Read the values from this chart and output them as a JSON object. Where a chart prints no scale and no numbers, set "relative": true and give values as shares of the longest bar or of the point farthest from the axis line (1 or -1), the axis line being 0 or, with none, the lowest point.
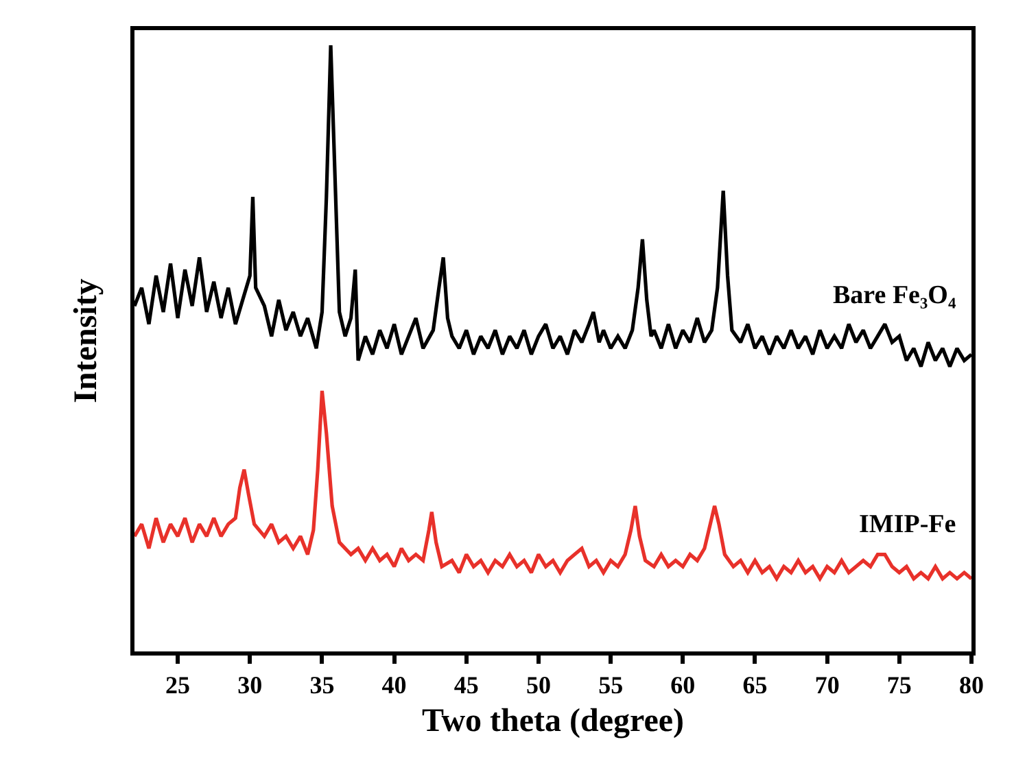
{
  "chart_data": {
    "type": "line",
    "relative": true,
    "xlabel": "Two theta (degree)",
    "ylabel": "Intensity",
    "xlim": [
      22,
      80
    ],
    "xticks": [
      25,
      30,
      35,
      40,
      45,
      50,
      55,
      60,
      65,
      70,
      75,
      80
    ],
    "legend": false,
    "marker": "none",
    "line_style": "solid",
    "series": [
      {
        "name": "Bare Fe₃O₄",
        "color": "#000000",
        "x": [
          22,
          22.5,
          23,
          23.5,
          24,
          24.5,
          25,
          25.5,
          26,
          26.5,
          27,
          27.5,
          28,
          28.5,
          29,
          29.5,
          30,
          30.2,
          30.4,
          31,
          31.5,
          32,
          32.5,
          33,
          33.5,
          34,
          34.6,
          35,
          35.3,
          35.6,
          35.9,
          36.2,
          36.6,
          37,
          37.3,
          37.5,
          38,
          38.5,
          39,
          39.5,
          40,
          40.5,
          41,
          41.5,
          42,
          42.7,
          43.1,
          43.4,
          43.7,
          44,
          44.5,
          45,
          45.5,
          46,
          46.5,
          47,
          47.5,
          48,
          48.5,
          49,
          49.5,
          50,
          50.5,
          51,
          51.5,
          52,
          52.5,
          53,
          53.5,
          53.8,
          54.2,
          54.5,
          55,
          55.5,
          56,
          56.5,
          56.9,
          57.2,
          57.5,
          57.8,
          58,
          58.5,
          59,
          59.5,
          60,
          60.5,
          61,
          61.5,
          62,
          62.4,
          62.8,
          63.1,
          63.4,
          64,
          64.5,
          65,
          65.5,
          66,
          66.5,
          67,
          67.5,
          68,
          68.5,
          69,
          69.5,
          70,
          70.5,
          71,
          71.5,
          72,
          72.5,
          73,
          73.5,
          74,
          74.5,
          75,
          75.5,
          76,
          76.5,
          77,
          77.5,
          78,
          78.5,
          79,
          79.5,
          80
        ],
        "values": [
          0.57,
          0.6,
          0.54,
          0.62,
          0.56,
          0.64,
          0.55,
          0.63,
          0.57,
          0.65,
          0.56,
          0.61,
          0.55,
          0.6,
          0.54,
          0.58,
          0.62,
          0.75,
          0.6,
          0.57,
          0.52,
          0.58,
          0.53,
          0.56,
          0.52,
          0.55,
          0.5,
          0.56,
          0.75,
          1.0,
          0.78,
          0.56,
          0.52,
          0.55,
          0.63,
          0.48,
          0.52,
          0.49,
          0.53,
          0.5,
          0.54,
          0.49,
          0.52,
          0.55,
          0.5,
          0.53,
          0.6,
          0.65,
          0.55,
          0.52,
          0.5,
          0.53,
          0.49,
          0.52,
          0.5,
          0.53,
          0.49,
          0.52,
          0.5,
          0.53,
          0.49,
          0.52,
          0.54,
          0.5,
          0.52,
          0.49,
          0.53,
          0.51,
          0.54,
          0.56,
          0.51,
          0.53,
          0.5,
          0.52,
          0.5,
          0.53,
          0.6,
          0.68,
          0.58,
          0.52,
          0.53,
          0.5,
          0.54,
          0.5,
          0.53,
          0.51,
          0.55,
          0.51,
          0.53,
          0.6,
          0.76,
          0.62,
          0.53,
          0.51,
          0.54,
          0.5,
          0.52,
          0.49,
          0.52,
          0.5,
          0.53,
          0.5,
          0.52,
          0.49,
          0.53,
          0.5,
          0.52,
          0.5,
          0.54,
          0.51,
          0.53,
          0.5,
          0.52,
          0.54,
          0.51,
          0.52,
          0.48,
          0.5,
          0.47,
          0.51,
          0.48,
          0.5,
          0.47,
          0.5,
          0.48,
          0.49
        ]
      },
      {
        "name": "IMIP-Fe",
        "color": "#e8312a",
        "x": [
          22,
          22.5,
          23,
          23.5,
          24,
          24.5,
          25,
          25.5,
          26,
          26.5,
          27,
          27.5,
          28,
          28.5,
          29,
          29.3,
          29.6,
          29.9,
          30.3,
          31,
          31.5,
          32,
          32.5,
          33,
          33.5,
          34,
          34.4,
          34.7,
          35,
          35.3,
          35.7,
          36.2,
          37,
          37.5,
          38,
          38.5,
          39,
          39.5,
          40,
          40.5,
          41,
          41.5,
          42,
          42.4,
          42.6,
          42.9,
          43.3,
          44,
          44.5,
          45,
          45.5,
          46,
          46.5,
          47,
          47.5,
          48,
          48.5,
          49,
          49.5,
          50,
          50.5,
          51,
          51.5,
          52,
          52.5,
          53,
          53.5,
          54,
          54.5,
          55,
          55.5,
          56,
          56.4,
          56.7,
          57,
          57.4,
          58,
          58.5,
          59,
          59.5,
          60,
          60.5,
          61,
          61.5,
          61.9,
          62.2,
          62.5,
          62.9,
          63.5,
          64,
          64.5,
          65,
          65.5,
          66,
          66.5,
          67,
          67.5,
          68,
          68.5,
          69,
          69.5,
          70,
          70.5,
          71,
          71.5,
          72,
          72.5,
          73,
          73.5,
          74,
          74.5,
          75,
          75.5,
          76,
          76.5,
          77,
          77.5,
          78,
          78.5,
          79,
          79.5,
          80
        ],
        "values": [
          0.19,
          0.21,
          0.17,
          0.22,
          0.18,
          0.21,
          0.19,
          0.22,
          0.18,
          0.21,
          0.19,
          0.22,
          0.19,
          0.21,
          0.22,
          0.27,
          0.3,
          0.26,
          0.21,
          0.19,
          0.21,
          0.18,
          0.19,
          0.17,
          0.19,
          0.16,
          0.2,
          0.3,
          0.43,
          0.36,
          0.24,
          0.18,
          0.16,
          0.17,
          0.15,
          0.17,
          0.15,
          0.16,
          0.14,
          0.17,
          0.15,
          0.16,
          0.15,
          0.2,
          0.23,
          0.18,
          0.14,
          0.15,
          0.13,
          0.16,
          0.14,
          0.15,
          0.13,
          0.15,
          0.14,
          0.16,
          0.14,
          0.15,
          0.13,
          0.16,
          0.14,
          0.15,
          0.13,
          0.15,
          0.16,
          0.17,
          0.14,
          0.15,
          0.13,
          0.15,
          0.14,
          0.16,
          0.2,
          0.24,
          0.19,
          0.15,
          0.14,
          0.16,
          0.14,
          0.15,
          0.14,
          0.16,
          0.15,
          0.17,
          0.21,
          0.24,
          0.21,
          0.16,
          0.14,
          0.15,
          0.13,
          0.15,
          0.13,
          0.14,
          0.12,
          0.14,
          0.13,
          0.15,
          0.13,
          0.14,
          0.12,
          0.14,
          0.13,
          0.15,
          0.13,
          0.14,
          0.15,
          0.14,
          0.16,
          0.16,
          0.14,
          0.13,
          0.14,
          0.12,
          0.13,
          0.12,
          0.14,
          0.12,
          0.13,
          0.12,
          0.13,
          0.12
        ]
      }
    ]
  }
}
